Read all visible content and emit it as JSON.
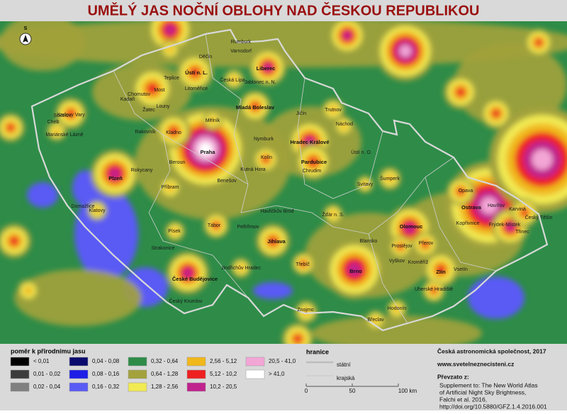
{
  "title": "UMĚLÝ JAS NOČNÍ OBLOHY NAD ČESKOU REPUBLIKOU",
  "compass": "S",
  "map": {
    "cities": [
      "Praha",
      "Plzeň",
      "Ústí n. L.",
      "Liberec",
      "Brno",
      "Ostrava",
      "Olomouc",
      "Hradec Králové",
      "Pardubice",
      "České Budějovice",
      "Jihlava",
      "Zlín",
      "Mladá Boleslav",
      "Karlovy Vary",
      "Kladno",
      "Chomutov",
      "Teplice",
      "Most",
      "Děčín",
      "Jablonec n. N.",
      "Opava",
      "Frýdek-Místek",
      "Karviná",
      "Třinec",
      "Kolín",
      "Kutná Hora",
      "Tábor",
      "Písek",
      "Příbram",
      "Beroun",
      "Cheb",
      "Sokolov",
      "Mariánské Lázně",
      "Klatovy",
      "Domažlice",
      "Přerov",
      "Prostějov",
      "Kroměříž",
      "Třebíč",
      "Žďár n. S.",
      "Havlíčkův Brod",
      "Jindřichův Hradec",
      "Český Krumlov",
      "Trutnov",
      "Náchod",
      "Šumperk",
      "Uherské Hradiště",
      "Hodonín",
      "Břeclav",
      "Znojmo",
      "Vyškov",
      "Svitavy",
      "Rumburk",
      "Varnsdorf",
      "Česká Lípa",
      "Litoměřice",
      "Louny",
      "Rakovník",
      "Mělník",
      "Nymburk",
      "Jičín",
      "Chrudim",
      "Ústí n. O.",
      "Český Těšín",
      "Havířov",
      "Vsetín",
      "Kopřivnice",
      "Strakonice",
      "Benešov",
      "Pelhřimov",
      "Rokycany",
      "Blansko",
      "Kadaň",
      "Žatec"
    ]
  },
  "legend": {
    "title": "poměr k přirodnímu jasu",
    "items": [
      {
        "label": "< 0,01",
        "color": "#000000"
      },
      {
        "label": "0,01 - 0,02",
        "color": "#3c3c3c"
      },
      {
        "label": "0,02 - 0,04",
        "color": "#808080"
      },
      {
        "label": "0,04 - 0,08",
        "color": "#0a0a6e"
      },
      {
        "label": "0,08 - 0,16",
        "color": "#1e1ee6"
      },
      {
        "label": "0,16 - 0,32",
        "color": "#5a5af5"
      },
      {
        "label": "0,32 - 0,64",
        "color": "#2e8c48"
      },
      {
        "label": "0,64 - 1,28",
        "color": "#a3a23c"
      },
      {
        "label": "1,28 - 2,56",
        "color": "#f2ea53"
      },
      {
        "label": "2,56 - 5,12",
        "color": "#f0b81a"
      },
      {
        "label": "5,12 - 10,2",
        "color": "#ee2020"
      },
      {
        "label": "10,2 - 20,5",
        "color": "#c0228e"
      },
      {
        "label": "20,5 - 41,0",
        "color": "#f3a6d6"
      },
      {
        "label": "> 41,0",
        "color": "#ffffff"
      }
    ]
  },
  "borders": {
    "title": "hranice",
    "items": [
      "státní",
      "krajská"
    ]
  },
  "scale": {
    "labels": [
      "0",
      "50",
      "100 km"
    ]
  },
  "credits": {
    "author": "Česká astronomická společnost, 2017",
    "web": "www.svetelneznecisteni.cz",
    "source_title": "Převzato z:",
    "source_lines": [
      "Supplement to: The New World Atlas",
      "of Artificial Night Sky Brightness,",
      "Falchi et al. 2016,",
      "http://doi.org/10.5880/GFZ.1.4.2016.001"
    ]
  }
}
